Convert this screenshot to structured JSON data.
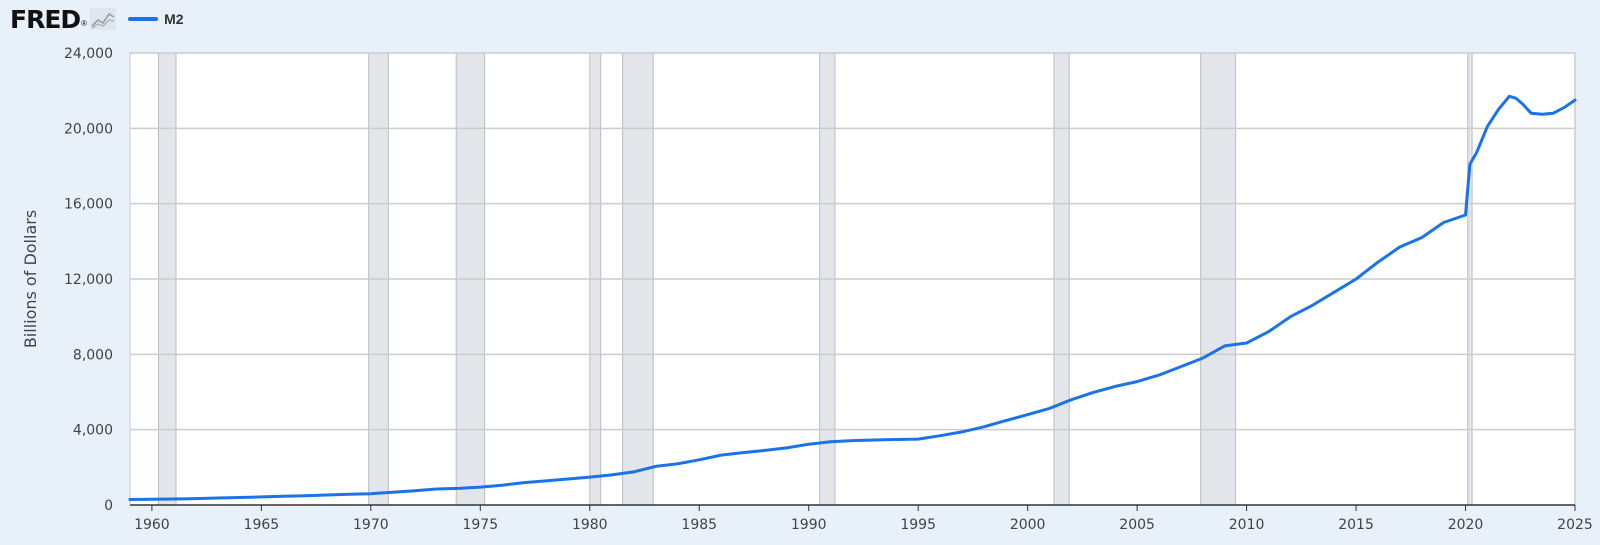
{
  "header": {
    "logo": "FRED",
    "logo_mark": "®"
  },
  "chart_data": {
    "type": "line",
    "ylabel": "Billions of Dollars",
    "xlim": [
      1959,
      2025
    ],
    "ylim": [
      0,
      24000
    ],
    "yticks": [
      0,
      4000,
      8000,
      12000,
      16000,
      20000,
      24000
    ],
    "ytick_labels": [
      "0",
      "4,000",
      "8,000",
      "12,000",
      "16,000",
      "20,000",
      "24,000"
    ],
    "xticks": [
      1960,
      1965,
      1970,
      1975,
      1980,
      1985,
      1990,
      1995,
      2000,
      2005,
      2010,
      2015,
      2020,
      2025
    ],
    "xtick_labels": [
      "1960",
      "1965",
      "1970",
      "1975",
      "1980",
      "1985",
      "1990",
      "1995",
      "2000",
      "2005",
      "2010",
      "2015",
      "2020",
      "2025"
    ],
    "grid": true,
    "legend_position": "top-left",
    "recessions": [
      [
        1960.3,
        1961.1
      ],
      [
        1969.9,
        1970.8
      ],
      [
        1973.9,
        1975.2
      ],
      [
        1980.0,
        1980.5
      ],
      [
        1981.5,
        1982.9
      ],
      [
        1990.5,
        1991.2
      ],
      [
        2001.2,
        2001.9
      ],
      [
        2007.9,
        2009.5
      ],
      [
        2020.1,
        2020.3
      ]
    ],
    "colors": {
      "line": "#1a73e8",
      "recession": "#e2e6ea",
      "grid": "#cccccc",
      "axis": "#333333"
    },
    "series": [
      {
        "name": "M2",
        "x": [
          1959,
          1960,
          1961,
          1962,
          1963,
          1964,
          1965,
          1966,
          1967,
          1968,
          1969,
          1970,
          1971,
          1972,
          1973,
          1974,
          1975,
          1976,
          1977,
          1978,
          1979,
          1980,
          1981,
          1982,
          1983,
          1984,
          1985,
          1986,
          1987,
          1988,
          1989,
          1990,
          1991,
          1992,
          1993,
          1994,
          1995,
          1996,
          1997,
          1998,
          1999,
          2000,
          2001,
          2002,
          2003,
          2004,
          2005,
          2006,
          2007,
          2008,
          2009,
          2010,
          2011,
          2012,
          2013,
          2014,
          2015,
          2016,
          2017,
          2018,
          2019,
          2020.0,
          2020.2,
          2020.5,
          2021.0,
          2021.5,
          2022.0,
          2022.3,
          2022.6,
          2023.0,
          2023.5,
          2024.0,
          2024.5,
          2025.0
        ],
        "values": [
          290,
          305,
          320,
          340,
          370,
          400,
          430,
          460,
          490,
          530,
          570,
          600,
          680,
          760,
          850,
          880,
          950,
          1050,
          1190,
          1280,
          1380,
          1480,
          1600,
          1760,
          2050,
          2180,
          2400,
          2650,
          2780,
          2900,
          3030,
          3230,
          3360,
          3420,
          3450,
          3480,
          3500,
          3680,
          3880,
          4150,
          4480,
          4800,
          5130,
          5590,
          5980,
          6300,
          6550,
          6900,
          7350,
          7800,
          8450,
          8600,
          9200,
          10000,
          10600,
          11300,
          12000,
          12900,
          13700,
          14200,
          15000,
          15400,
          18100,
          18700,
          20100,
          21000,
          21700,
          21600,
          21300,
          20800,
          20750,
          20800,
          21100,
          21500
        ]
      }
    ]
  }
}
